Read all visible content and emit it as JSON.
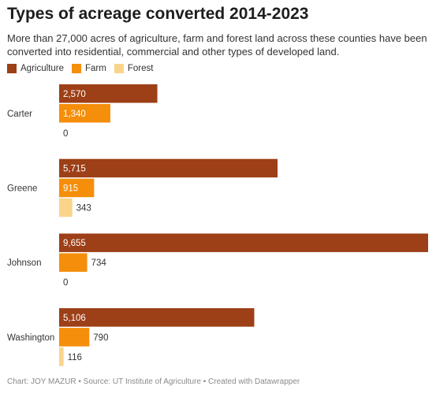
{
  "title": "Types of acreage converted 2014-2023",
  "subtitle": "More than 27,000 acres of agriculture, farm and forest land across these counties have been converted into residential, commercial and other types of developed land.",
  "footer": "Chart: JOY MAZUR • Source: UT Institute of Agriculture • Created with Datawrapper",
  "chart_data": {
    "type": "bar",
    "orientation": "horizontal",
    "categories": [
      "Carter",
      "Greene",
      "Johnson",
      "Washington"
    ],
    "series": [
      {
        "name": "Agriculture",
        "color": "#9d3f17",
        "values": [
          2570,
          5715,
          9655,
          5106
        ],
        "labels": [
          "2,570",
          "5,715",
          "9,655",
          "5,106"
        ]
      },
      {
        "name": "Farm",
        "color": "#f58e0b",
        "values": [
          1340,
          915,
          734,
          790
        ],
        "labels": [
          "1,340",
          "915",
          "734",
          "790"
        ]
      },
      {
        "name": "Forest",
        "color": "#fbd48c",
        "values": [
          0,
          343,
          0,
          116
        ],
        "labels": [
          "0",
          "343",
          "0",
          "116"
        ]
      }
    ],
    "xlim": [
      0,
      9655
    ],
    "legend": "top-left",
    "grid": false
  }
}
